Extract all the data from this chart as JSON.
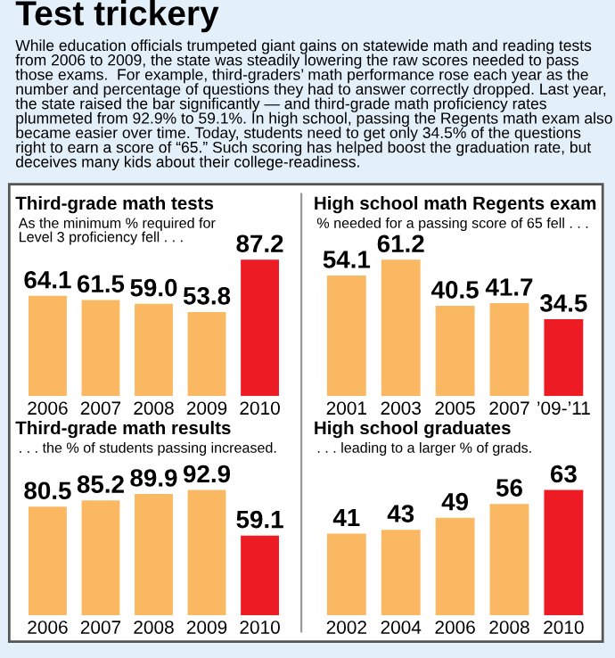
{
  "chart_data": [
    {
      "type": "other",
      "title": "Test trickery",
      "annotations": [
        "While education officials trumpeted giant gains on statewide math and reading tests from 2006 to 2009, the state was steadily lowering the raw scores needed to pass those exams.  For example, third-graders’ math performance rose each year as the number and percentage of questions they had to answer correctly dropped. Last year, the state raised the bar significantly — and third-grade math proficiency rates plummeted from 92.9% to 59.1%. In high school, passing the Regents math exam also became easier over time. Today, students need to get only 34.5% of the questions right to earn a score of “65.” Such scoring has helped boost the graduation rate, but deceives many kids about their college-readiness."
      ]
    },
    {
      "type": "bar",
      "title": "Third-grade math tests",
      "subtitle": "As the minimum % required for\nLevel 3 proficiency fell . . .",
      "categories": [
        "2006",
        "2007",
        "2008",
        "2009",
        "2010"
      ],
      "values": [
        64.1,
        61.5,
        59.0,
        53.8,
        87.2
      ],
      "value_labels": [
        "64.1",
        "61.5",
        "59.0",
        "53.8",
        "87.2"
      ],
      "colors": [
        "#fbb862",
        "#fbb862",
        "#fbb862",
        "#fbb862",
        "#ed1c24"
      ]
    },
    {
      "type": "bar",
      "title": "High school math Regents exam",
      "subtitle": "% needed for a passing score of 65 fell . . .",
      "categories": [
        "2001",
        "2003",
        "2005",
        "2007",
        "’09-’11"
      ],
      "values": [
        54.1,
        61.2,
        40.5,
        41.7,
        34.5
      ],
      "colors": [
        "#fbb862",
        "#fbb862",
        "#fbb862",
        "#fbb862",
        "#ed1c24"
      ],
      "data_labels": true
    },
    {
      "type": "bar",
      "title": "Third-grade math results",
      "subtitle": ". . . the % of students passing increased.",
      "categories": [
        "2006",
        "2007",
        "2008",
        "2009",
        "2010"
      ],
      "values": [
        80.5,
        85.2,
        89.9,
        92.9,
        59.1
      ],
      "colors": [
        "#fbb862",
        "#fbb862",
        "#fbb862",
        "#fbb862",
        "#ed1c24"
      ],
      "data_labels": true
    },
    {
      "type": "bar",
      "title": "High school graduates",
      "subtitle": ". . . leading to a larger % of grads.",
      "categories": [
        "2002",
        "2004",
        "2006",
        "2008",
        "2010"
      ],
      "values": [
        41,
        43,
        49,
        56,
        63
      ],
      "colors": [
        "#fbb862",
        "#fbb862",
        "#fbb862",
        "#fbb862",
        "#ed1c24"
      ],
      "data_labels": true
    }
  ]
}
